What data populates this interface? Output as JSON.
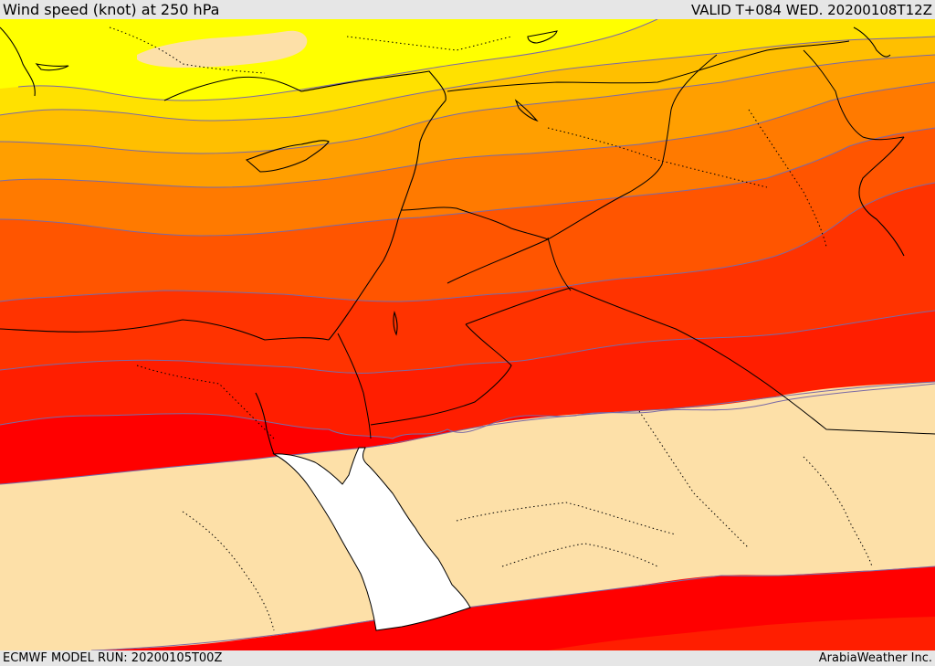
{
  "header": {
    "title": "Wind speed (knot) at 250 hPa",
    "valid_time": "VALID T+084 WED. 20200108T12Z"
  },
  "footer": {
    "model_run": "ECMWF MODEL RUN: 20200105T00Z",
    "credit": "ArabiaWeather Inc."
  },
  "map": {
    "field": "wind speed at 250 hPa",
    "colors": {
      "lowest": "#fde0a8",
      "yellow": "#ffff00",
      "gold": "#ffe100",
      "amber": "#ffbf00",
      "orange": "#ff9f00",
      "dark_orange": "#ff7a00",
      "orange_red": "#ff5500",
      "red_orange": "#ff3300",
      "red": "#ff1e00",
      "bright_red": "#ff0000",
      "sea": "#ffffff",
      "contour": "#7a6aa6",
      "lines": "#000000"
    }
  }
}
